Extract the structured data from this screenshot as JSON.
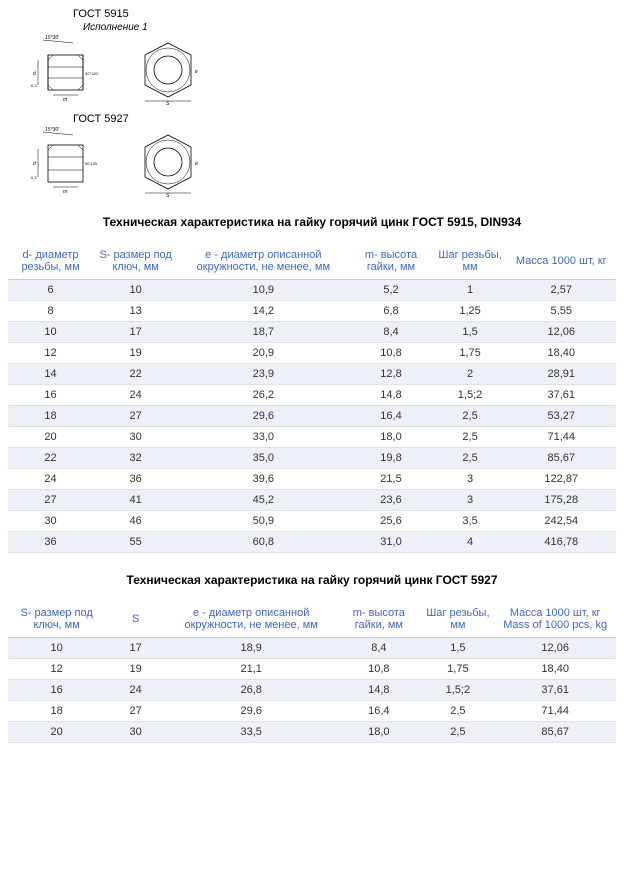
{
  "diagram": {
    "gost5915": "ГОСТ 5915",
    "gost5927": "ГОСТ 5927",
    "exec": "Исполнение 1"
  },
  "title1": "Техническая характеристика на гайку горячий цинк ГОСТ 5915, DIN934",
  "title2": "Техническая характеристика на гайку горячий цинк ГОСТ 5927",
  "table1": {
    "columns": [
      "d- диаметр резьбы, мм",
      "S- размер под ключ, мм",
      "e - диаметр описанной окружности, не менее, мм",
      "m- высота гайки, мм",
      "Шаг резьбы, мм",
      "Масса 1000 шт, кг"
    ],
    "rows": [
      [
        "6",
        "10",
        "10,9",
        "5,2",
        "1",
        "2,57"
      ],
      [
        "8",
        "13",
        "14,2",
        "6,8",
        "1,25",
        "5,55"
      ],
      [
        "10",
        "17",
        "18,7",
        "8,4",
        "1,5",
        "12,06"
      ],
      [
        "12",
        "19",
        "20,9",
        "10,8",
        "1,75",
        "18,40"
      ],
      [
        "14",
        "22",
        "23,9",
        "12,8",
        "2",
        "28,91"
      ],
      [
        "16",
        "24",
        "26,2",
        "14,8",
        "1,5;2",
        "37,61"
      ],
      [
        "18",
        "27",
        "29,6",
        "16,4",
        "2,5",
        "53,27"
      ],
      [
        "20",
        "30",
        "33,0",
        "18,0",
        "2,5",
        "71,44"
      ],
      [
        "22",
        "32",
        "35,0",
        "19,8",
        "2,5",
        "85,67"
      ],
      [
        "24",
        "36",
        "39,6",
        "21,5",
        "3",
        "122,87"
      ],
      [
        "27",
        "41",
        "45,2",
        "23,6",
        "3",
        "175,28"
      ],
      [
        "30",
        "46",
        "50,9",
        "25,6",
        "3,5",
        "242,54"
      ],
      [
        "36",
        "55",
        "60,8",
        "31,0",
        "4",
        "416,78"
      ]
    ]
  },
  "table2": {
    "columns": [
      "S- размер под ключ, мм",
      "S",
      "e - диаметр описанной окружности, не менее, мм",
      "m- высота гайки, мм",
      "Шаг резьбы, мм",
      "Масса 1000 шт, кг Mass of 1000 pcs, kg"
    ],
    "rows": [
      [
        "10",
        "17",
        "18,9",
        "8,4",
        "1,5",
        "12,06"
      ],
      [
        "12",
        "19",
        "21,1",
        "10,8",
        "1,75",
        "18,40"
      ],
      [
        "16",
        "24",
        "26,8",
        "14,8",
        "1,5;2",
        "37,61"
      ],
      [
        "18",
        "27",
        "29,6",
        "16,4",
        "2,5",
        "71,44"
      ],
      [
        "20",
        "30",
        "33,5",
        "18,0",
        "2,5",
        "85,67"
      ]
    ]
  }
}
